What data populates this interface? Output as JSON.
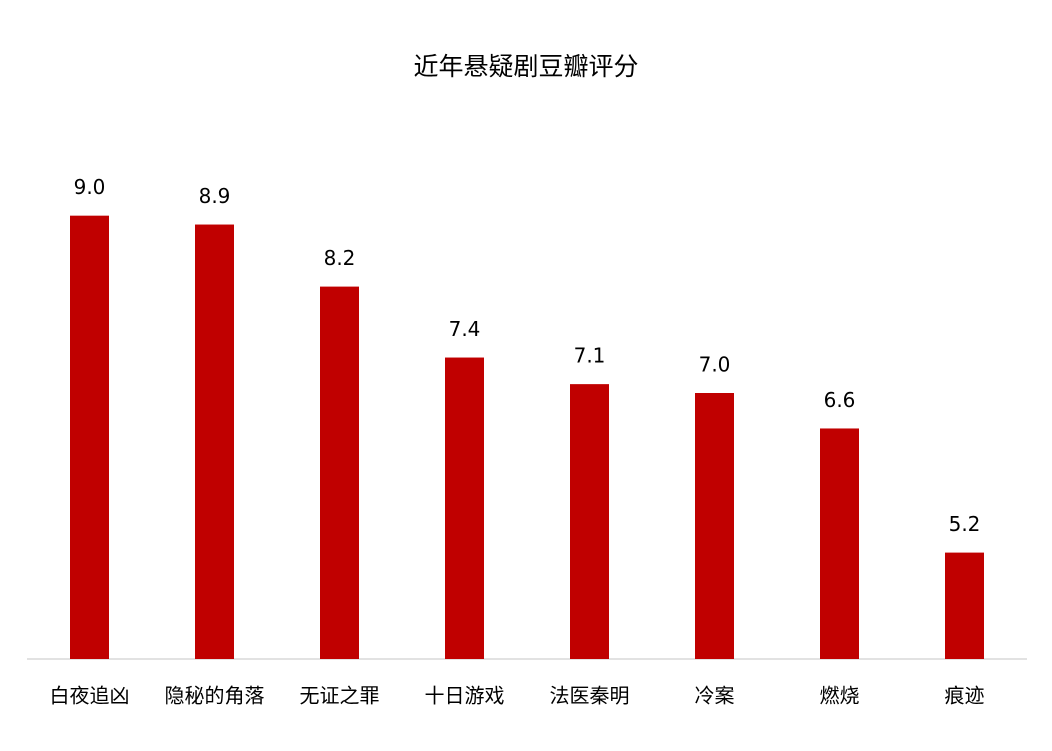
{
  "chart_data": {
    "type": "bar",
    "title": "近年悬疑剧豆瓣评分",
    "categories": [
      "白夜追凶",
      "隐秘的角落",
      "无证之罪",
      "十日游戏",
      "法医秦明",
      "冷案",
      "燃烧",
      "痕迹"
    ],
    "values": [
      9.0,
      8.9,
      8.2,
      7.4,
      7.1,
      7.0,
      6.6,
      5.2
    ],
    "value_labels": [
      "9.0",
      "8.9",
      "8.2",
      "7.4",
      "7.1",
      "7.0",
      "6.6",
      "5.2"
    ],
    "color": "#c00000",
    "ylim": [
      4,
      10
    ]
  }
}
